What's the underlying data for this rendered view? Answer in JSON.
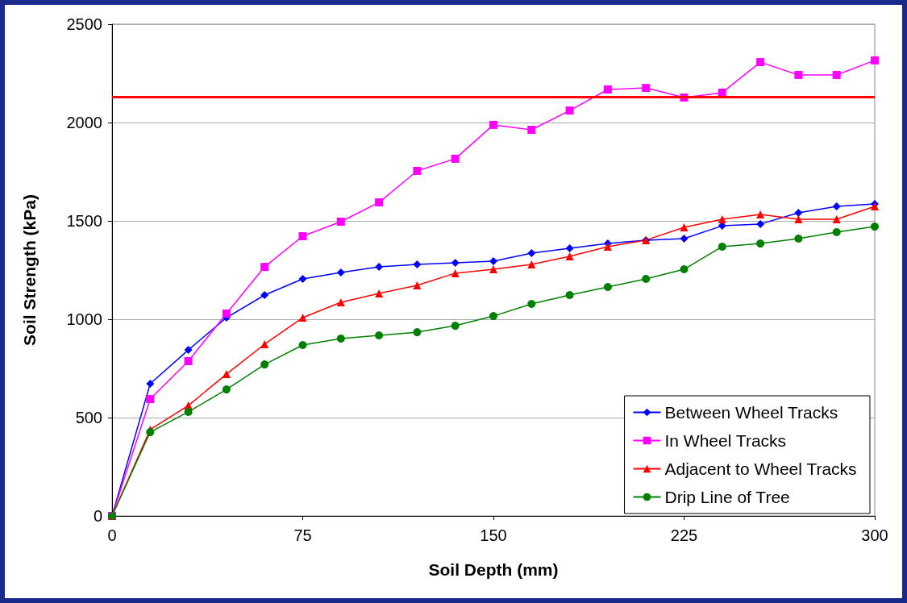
{
  "chart_data": {
    "type": "line",
    "xlabel": "Soil Depth (mm)",
    "ylabel": "Soil Strength (kPa)",
    "x": [
      0,
      15,
      30,
      45,
      60,
      75,
      90,
      105,
      120,
      135,
      150,
      165,
      180,
      195,
      210,
      225,
      240,
      255,
      270,
      285,
      300
    ],
    "xlim": [
      0,
      300
    ],
    "xticks": [
      0,
      75,
      150,
      225,
      300
    ],
    "ylim": [
      0,
      2500
    ],
    "yticks": [
      0,
      500,
      1000,
      1500,
      2000,
      2500
    ],
    "grid": "y",
    "legend": "bottom right",
    "ref_lines": [
      {
        "axis": "y",
        "value": 2130,
        "color": "#ff0000",
        "line_style": "solid"
      }
    ],
    "series": [
      {
        "name": "Between Wheel Tracks",
        "color": "#0000ff",
        "marker": "diamond",
        "values": [
          0,
          672,
          844,
          1008,
          1123,
          1205,
          1238,
          1266,
          1279,
          1287,
          1295,
          1336,
          1361,
          1385,
          1402,
          1410,
          1475,
          1484,
          1541,
          1574,
          1586
        ]
      },
      {
        "name": "In Wheel Tracks",
        "color": "#ff00ff",
        "marker": "square",
        "values": [
          0,
          594,
          787,
          1029,
          1266,
          1422,
          1496,
          1594,
          1754,
          1816,
          1988,
          1963,
          2061,
          2168,
          2176,
          2127,
          2152,
          2307,
          2242,
          2242,
          2316
        ]
      },
      {
        "name": "Adjacent to Wheel Tracks",
        "color": "#ff0000",
        "marker": "triangle",
        "values": [
          0,
          439,
          561,
          721,
          873,
          1008,
          1086,
          1131,
          1172,
          1234,
          1254,
          1279,
          1320,
          1369,
          1402,
          1467,
          1508,
          1533,
          1508,
          1508,
          1574
        ]
      },
      {
        "name": "Drip Line of Tree",
        "color": "#008000",
        "marker": "circle",
        "values": [
          0,
          426,
          529,
          643,
          770,
          869,
          902,
          918,
          934,
          967,
          1016,
          1078,
          1123,
          1164,
          1205,
          1254,
          1369,
          1385,
          1410,
          1443,
          1471
        ]
      }
    ]
  }
}
